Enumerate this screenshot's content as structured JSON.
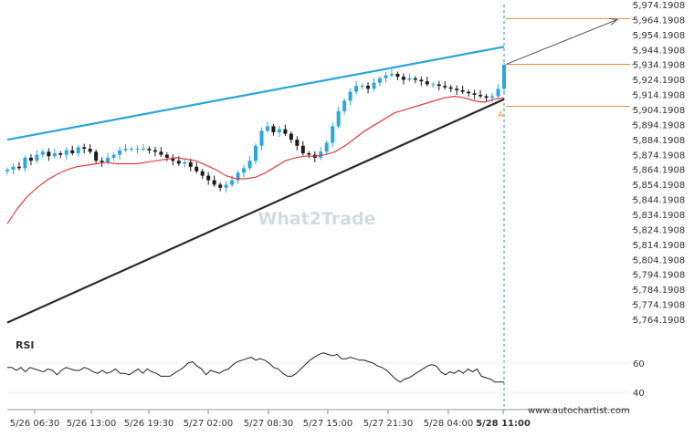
{
  "chart_data": {
    "type": "candlestick",
    "price_axis": {
      "ticks": [
        "5,974.1908",
        "5,964.1908",
        "5,954.1908",
        "5,944.1908",
        "5,934.1908",
        "5,924.1908",
        "5,914.1908",
        "5,904.1908",
        "5,894.1908",
        "5,884.1908",
        "5,874.1908",
        "5,864.1908",
        "5,854.1908",
        "5,844.1908",
        "5,834.1908",
        "5,824.1908",
        "5,814.1908",
        "5,804.1908",
        "5,794.1908",
        "5,784.1908",
        "5,774.1908",
        "5,764.1908"
      ],
      "range": [
        5758.0,
        5978.0
      ]
    },
    "time_axis": {
      "ticks": [
        "5/26 06:30",
        "5/26 13:00",
        "5/26 19:30",
        "5/27 02:00",
        "5/27 08:30",
        "5/27 15:00",
        "5/27 21:30",
        "5/28 04:00",
        "5/28 11:00"
      ]
    },
    "close_series": [
      5864,
      5866,
      5865,
      5872,
      5870,
      5874,
      5876,
      5873,
      5875,
      5874,
      5877,
      5875,
      5879,
      5878,
      5876,
      5870,
      5869,
      5872,
      5874,
      5877,
      5878,
      5878,
      5878,
      5878,
      5877,
      5876,
      5874,
      5872,
      5870,
      5868,
      5869,
      5866,
      5863,
      5860,
      5857,
      5854,
      5852,
      5854,
      5857,
      5862,
      5865,
      5870,
      5880,
      5890,
      5893,
      5889,
      5891,
      5888,
      5884,
      5880,
      5875,
      5874,
      5872,
      5876,
      5882,
      5893,
      5903,
      5910,
      5916,
      5920,
      5920,
      5918,
      5922,
      5925,
      5927,
      5928,
      5926,
      5924,
      5925,
      5924,
      5923,
      5921,
      5921,
      5920,
      5919,
      5918,
      5917,
      5916,
      5915,
      5914,
      5913,
      5912,
      5913,
      5918,
      5934
    ],
    "moving_average": [
      5828,
      5838,
      5846,
      5852,
      5857,
      5861,
      5864,
      5866,
      5867,
      5868,
      5869,
      5868,
      5868,
      5868,
      5869,
      5870,
      5871,
      5872,
      5871,
      5870,
      5867,
      5864,
      5860,
      5858,
      5858,
      5859,
      5862,
      5866,
      5870,
      5872,
      5873,
      5873,
      5874,
      5876,
      5880,
      5885,
      5890,
      5894,
      5898,
      5902,
      5904,
      5906,
      5908,
      5910,
      5912,
      5913,
      5912,
      5910,
      5909,
      5911,
      5912
    ],
    "upper_trendline": {
      "from": 5884.0,
      "to": 5946.0
    },
    "lower_trendline": {
      "from": 5762.0,
      "to": 5911.0
    },
    "target_level": 5964.8,
    "current_level": 5934.3,
    "entry_level": 5906.3,
    "point_label": "A",
    "rsi": {
      "label": "RSI",
      "ticks": [
        "60",
        "40"
      ],
      "values": [
        57,
        57,
        55,
        57,
        54,
        57,
        56,
        55,
        54,
        56,
        55,
        52,
        55,
        57,
        56,
        55,
        55,
        57,
        56,
        54,
        53,
        55,
        53,
        54,
        56,
        53,
        53,
        52,
        54,
        56,
        53,
        56,
        54,
        53,
        51,
        51,
        51,
        53,
        55,
        57,
        60,
        61,
        58,
        56,
        52,
        55,
        54,
        53,
        55,
        56,
        59,
        61,
        62,
        63,
        64,
        62,
        63,
        62,
        60,
        57,
        56,
        53,
        51,
        51,
        53,
        56,
        59,
        62,
        64,
        66,
        67,
        66,
        65,
        66,
        63,
        63,
        64,
        63,
        62,
        62,
        61,
        60,
        58,
        57,
        55,
        52,
        49,
        47,
        49,
        50,
        52,
        54,
        56,
        58,
        59,
        58,
        54,
        52,
        54,
        53,
        55,
        53,
        56,
        54,
        56,
        51,
        50,
        49,
        47,
        47,
        47
      ],
      "range": [
        30,
        75
      ]
    },
    "watermark": "What2Trade",
    "source": "www.autochartist.com"
  }
}
